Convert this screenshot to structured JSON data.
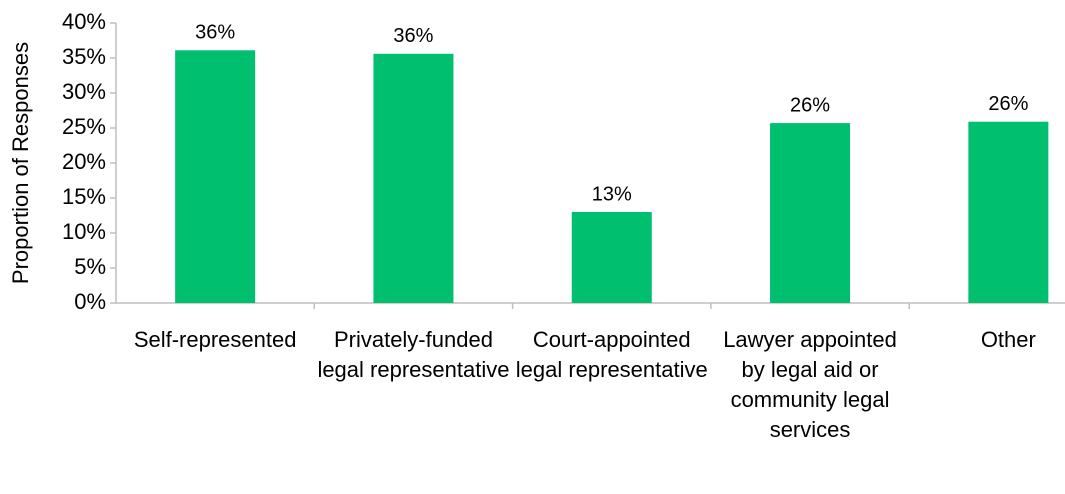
{
  "chart_data": {
    "type": "bar",
    "y_label": "Proportion of Responses",
    "categories": [
      "Self-represented",
      "Privately-funded legal representative",
      "Court-appointed legal representative",
      "Lawyer appointed by legal aid or community legal services",
      "Other"
    ],
    "values": [
      36.1,
      35.6,
      13,
      25.7,
      25.9
    ],
    "value_labels": [
      "36%",
      "36%",
      "13%",
      "26%",
      "26%"
    ],
    "color": "#00bf6f",
    "ylim": [
      0,
      40
    ],
    "yticks": [
      {
        "value": 0,
        "label": "0%"
      },
      {
        "value": 5,
        "label": "5%"
      },
      {
        "value": 10,
        "label": "10%"
      },
      {
        "value": 15,
        "label": "15%"
      },
      {
        "value": 20,
        "label": "20%"
      },
      {
        "value": 25,
        "label": "25%"
      },
      {
        "value": 30,
        "label": "30%"
      },
      {
        "value": 35,
        "label": "35%"
      },
      {
        "value": 40,
        "label": "40%"
      }
    ],
    "grid": false
  }
}
